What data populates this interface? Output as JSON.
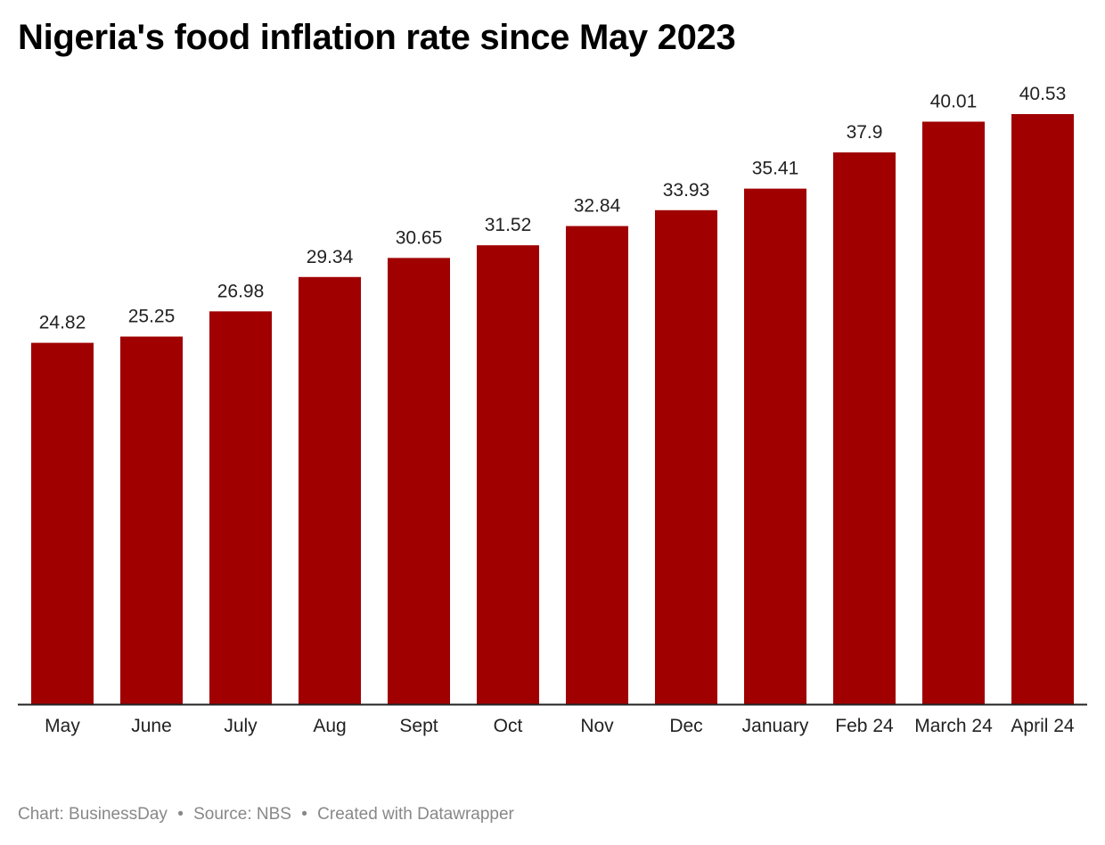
{
  "chart_data": {
    "type": "bar",
    "title": "Nigeria's food inflation rate since May 2023",
    "categories": [
      "May",
      "June",
      "July",
      "Aug",
      "Sept",
      "Oct",
      "Nov",
      "Dec",
      "January",
      "Feb 24",
      "March 24",
      "April 24"
    ],
    "values": [
      24.82,
      25.25,
      26.98,
      29.34,
      30.65,
      31.52,
      32.84,
      33.93,
      35.41,
      37.9,
      40.01,
      40.53
    ],
    "value_labels": [
      "24.82",
      "25.25",
      "26.98",
      "29.34",
      "30.65",
      "31.52",
      "32.84",
      "33.93",
      "35.41",
      "37.9",
      "40.01",
      "40.53"
    ],
    "xlabel": "",
    "ylabel": "",
    "ylim": [
      0,
      40.53
    ],
    "grid": false,
    "legend": "none",
    "bar_color": "#a00000",
    "axis_color": "#222222"
  },
  "footer": {
    "chart_credit": "Chart: BusinessDay",
    "source": "Source: NBS",
    "created_with": "Created with Datawrapper",
    "separator": "•"
  }
}
